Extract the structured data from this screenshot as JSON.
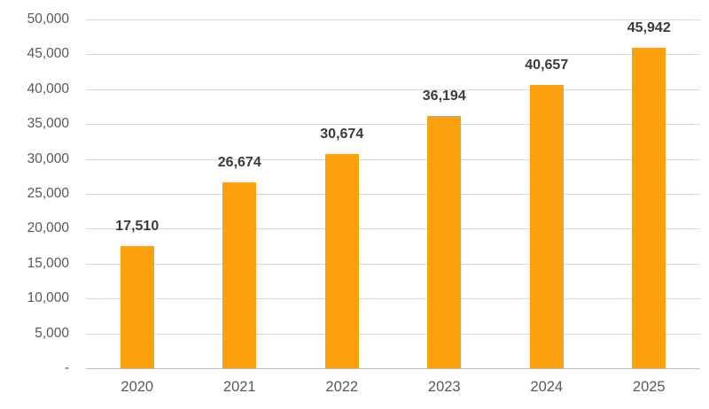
{
  "chart_data": {
    "type": "bar",
    "title": "",
    "xlabel": "",
    "ylabel": "",
    "categories": [
      "2020",
      "2021",
      "2022",
      "2023",
      "2024",
      "2025"
    ],
    "values": [
      17510,
      26674,
      30674,
      36194,
      40657,
      45942
    ],
    "data_labels": [
      "17,510",
      "26,674",
      "30,674",
      "36,194",
      "40,657",
      "45,942"
    ],
    "ylim": [
      0,
      50000
    ],
    "y_tick_step": 5000,
    "y_tick_labels": [
      "-",
      "5,000",
      "10,000",
      "15,000",
      "20,000",
      "25,000",
      "30,000",
      "35,000",
      "40,000",
      "45,000",
      "50,000"
    ],
    "grid": true,
    "legend": "none",
    "colors": {
      "bar_fill": "#FCA10E",
      "gridline": "#D9D9D9",
      "axis_line": "#BFBFBF",
      "tick_label": "#595959",
      "data_label": "#3B3B3B",
      "background": "#FFFFFF"
    }
  }
}
